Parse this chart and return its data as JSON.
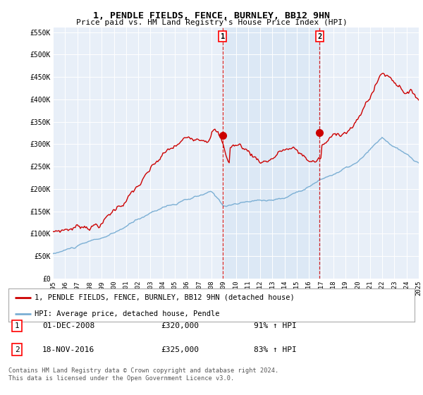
{
  "title": "1, PENDLE FIELDS, FENCE, BURNLEY, BB12 9HN",
  "subtitle": "Price paid vs. HM Land Registry's House Price Index (HPI)",
  "sale1_date": "01-DEC-2008",
  "sale1_price": 320000,
  "sale1_hpi": "91% ↑ HPI",
  "sale2_date": "18-NOV-2016",
  "sale2_price": 325000,
  "sale2_hpi": "83% ↑ HPI",
  "legend1": "1, PENDLE FIELDS, FENCE, BURNLEY, BB12 9HN (detached house)",
  "legend2": "HPI: Average price, detached house, Pendle",
  "footer1": "Contains HM Land Registry data © Crown copyright and database right 2024.",
  "footer2": "This data is licensed under the Open Government Licence v3.0.",
  "red_color": "#cc0000",
  "blue_color": "#7bafd4",
  "shade_color": "#dce8f5",
  "background_color": "#e8eff8",
  "ylim": [
    0,
    560000
  ],
  "ytick_vals": [
    0,
    50000,
    100000,
    150000,
    200000,
    250000,
    300000,
    350000,
    400000,
    450000,
    500000,
    550000
  ],
  "ytick_labels": [
    "£0",
    "£50K",
    "£100K",
    "£150K",
    "£200K",
    "£250K",
    "£300K",
    "£350K",
    "£400K",
    "£450K",
    "£500K",
    "£550K"
  ],
  "sale1_x": 2008.917,
  "sale2_x": 2016.875,
  "xmin": 1995,
  "xmax": 2025
}
